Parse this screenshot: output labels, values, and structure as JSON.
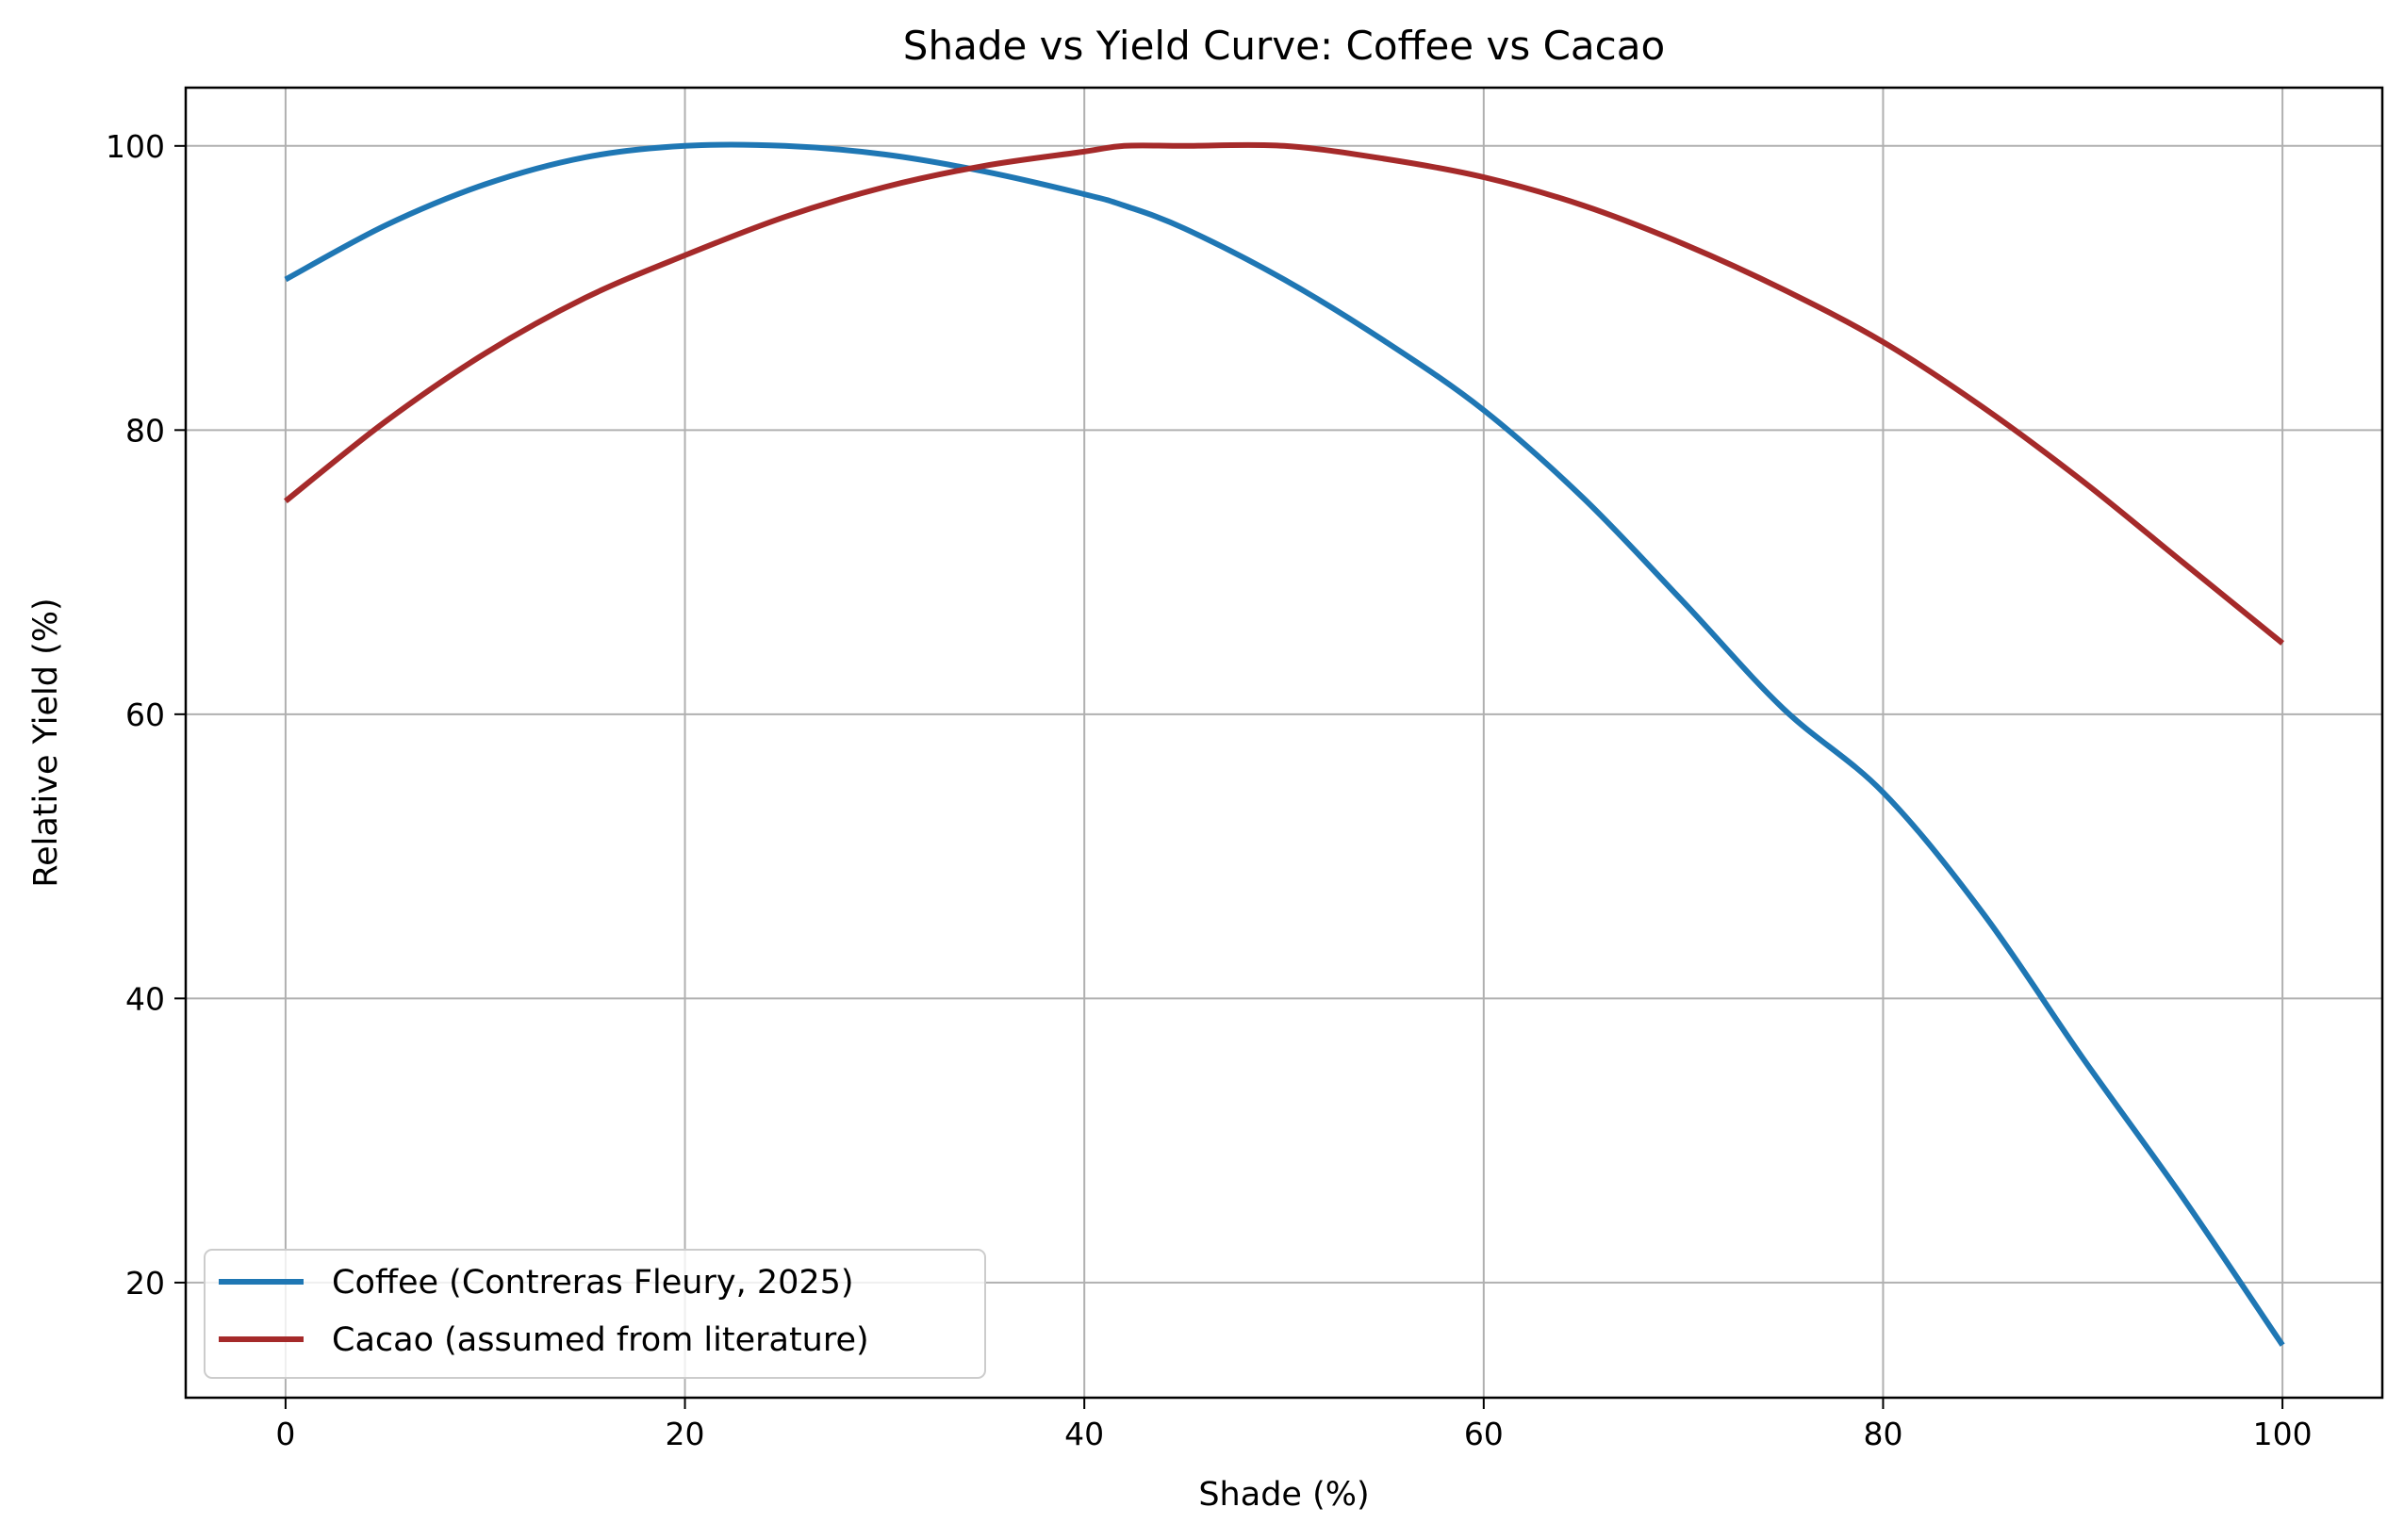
{
  "chart_data": {
    "type": "line",
    "title": "Shade vs Yield Curve: Coffee vs Cacao",
    "xlabel": "Shade (%)",
    "ylabel": "Relative Yield (%)",
    "xlim": [
      -5,
      105
    ],
    "ylim": [
      11.9,
      104.1
    ],
    "xticks": [
      0,
      20,
      40,
      60,
      80,
      100
    ],
    "yticks": [
      20,
      40,
      60,
      80,
      100
    ],
    "grid": true,
    "legend_position": "lower-left",
    "x": [
      0,
      5,
      10,
      15,
      20,
      25,
      30,
      35,
      40,
      42,
      45,
      50,
      55,
      60,
      65,
      70,
      75,
      80,
      85,
      90,
      95,
      100
    ],
    "series": [
      {
        "name": "Coffee (Contreras Fleury, 2025)",
        "color": "#1f77b4",
        "values": [
          90.6,
          94.4,
          97.3,
          99.2,
          100.0,
          100.0,
          99.4,
          98.2,
          96.6,
          95.8,
          94.2,
          90.6,
          86.3,
          81.4,
          75.2,
          67.9,
          60.4,
          54.5,
          46.0,
          35.8,
          26.0,
          15.6
        ]
      },
      {
        "name": "Cacao (assumed from literature)",
        "color": "#a52a2a",
        "values": [
          75.0,
          80.6,
          85.4,
          89.3,
          92.3,
          95.0,
          97.1,
          98.6,
          99.6,
          100.0,
          100.0,
          100.0,
          99.1,
          97.8,
          95.8,
          93.1,
          89.9,
          86.2,
          81.6,
          76.4,
          70.7,
          65.0
        ]
      }
    ]
  }
}
